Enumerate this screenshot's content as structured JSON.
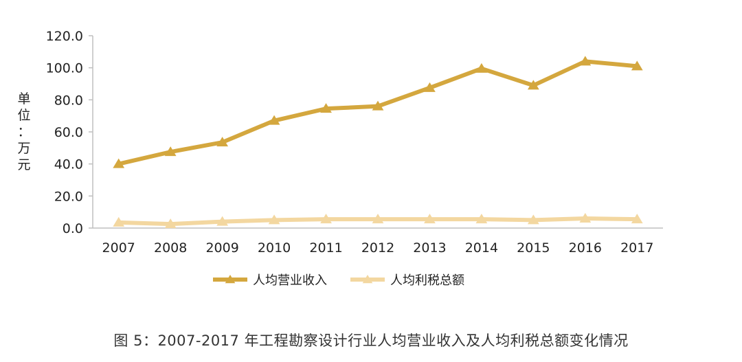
{
  "chart_data": {
    "type": "line",
    "x": [
      "2007",
      "2008",
      "2009",
      "2010",
      "2011",
      "2012",
      "2013",
      "2014",
      "2015",
      "2016",
      "2017"
    ],
    "series": [
      {
        "name": "人均营业收入",
        "color": "#D4A73E",
        "marker": "triangle",
        "values": [
          40.0,
          47.5,
          53.5,
          67.0,
          74.5,
          76.0,
          87.5,
          99.5,
          89.0,
          104.0,
          101.0
        ]
      },
      {
        "name": "人均利税总额",
        "color": "#F3D7A0",
        "marker": "triangle",
        "values": [
          3.5,
          2.5,
          4.0,
          5.0,
          5.5,
          5.5,
          5.5,
          5.5,
          5.0,
          6.0,
          5.5
        ]
      }
    ],
    "y_ticks": [
      "0.0",
      "20.0",
      "40.0",
      "60.0",
      "80.0",
      "100.0",
      "120.0"
    ],
    "ylim": [
      0,
      120
    ],
    "ylabel": "单位：万元",
    "legend_position": "bottom",
    "grid": false
  },
  "caption": "图  5：2007-2017 年工程勘察设计行业人均营业收入及人均利税总额变化情况"
}
